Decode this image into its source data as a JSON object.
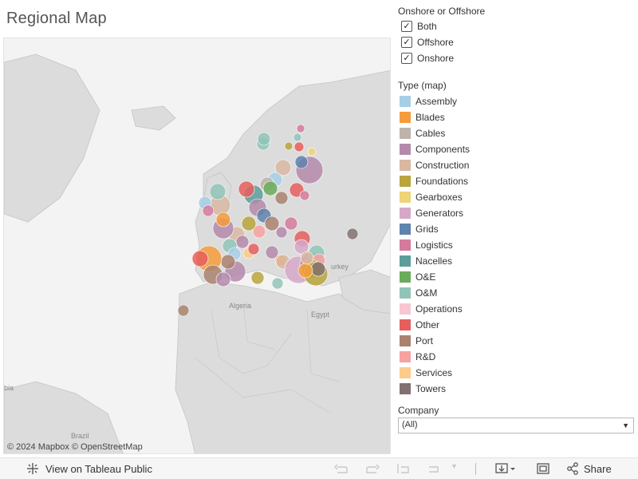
{
  "title": "Regional Map",
  "map": {
    "attribution": "© 2024 Mapbox © OpenStreetMap",
    "labels": {
      "algeria": "Algeria",
      "egypt": "Egypt",
      "turkey": "urkey",
      "brazil": "Brazil",
      "bia": "bia"
    }
  },
  "filters": {
    "onshore_offshore": {
      "title": "Onshore or Offshore",
      "options": [
        {
          "label": "Both",
          "checked": true
        },
        {
          "label": "Offshore",
          "checked": true
        },
        {
          "label": "Onshore",
          "checked": true
        }
      ]
    },
    "type": {
      "title": "Type (map)",
      "items": [
        {
          "label": "Assembly",
          "color": "#a6cfe6"
        },
        {
          "label": "Blades",
          "color": "#f59c3c"
        },
        {
          "label": "Cables",
          "color": "#bdb3ab"
        },
        {
          "label": "Components",
          "color": "#b48aac"
        },
        {
          "label": "Construction",
          "color": "#d9b8a3"
        },
        {
          "label": "Foundations",
          "color": "#b9a43d"
        },
        {
          "label": "Gearboxes",
          "color": "#efd378"
        },
        {
          "label": "Generators",
          "color": "#d6a8c8"
        },
        {
          "label": "Grids",
          "color": "#5f83ad"
        },
        {
          "label": "Logistics",
          "color": "#d47b9d"
        },
        {
          "label": "Nacelles",
          "color": "#5b9e9b"
        },
        {
          "label": "O&E",
          "color": "#6aac5a"
        },
        {
          "label": "O&M",
          "color": "#91c4b7"
        },
        {
          "label": "Operations",
          "color": "#f7c6d3"
        },
        {
          "label": "Other",
          "color": "#e55f5d"
        },
        {
          "label": "Port",
          "color": "#aa8270"
        },
        {
          "label": "R&D",
          "color": "#f6a2a0"
        },
        {
          "label": "Services",
          "color": "#fdcb8b"
        },
        {
          "label": "Towers",
          "color": "#817271"
        }
      ]
    },
    "company": {
      "title": "Company",
      "value": "(All)"
    }
  },
  "toolbar": {
    "view_label": "View on Tableau Public",
    "share_label": "Share"
  }
}
